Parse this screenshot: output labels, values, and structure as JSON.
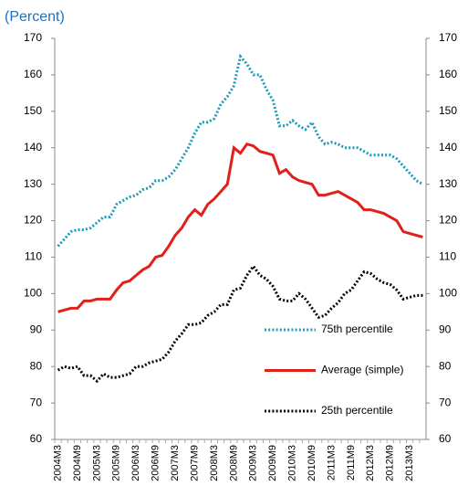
{
  "chart_data": {
    "type": "line",
    "subtitle": "(Percent)",
    "categories": [
      "2004M3",
      null,
      null,
      "2004M9",
      null,
      null,
      "2005M3",
      null,
      null,
      "2005M9",
      null,
      null,
      "2006M3",
      null,
      null,
      "2006M9",
      null,
      null,
      "2007M3",
      null,
      null,
      "2007M9",
      null,
      null,
      "2008M3",
      null,
      null,
      "2008M9",
      null,
      null,
      "2009M3",
      null,
      null,
      "2009M9",
      null,
      null,
      "2010M3",
      null,
      null,
      "2010M9",
      null,
      null,
      "2011M3",
      null,
      null,
      "2011M9",
      null,
      null,
      "2012M3",
      null,
      null,
      "2012M9",
      null,
      null,
      "2013M3",
      null,
      null
    ],
    "series": [
      {
        "name": "75th percentile",
        "color": "#1f9bb5",
        "style": "dotted",
        "values": [
          113,
          115,
          117,
          117.5,
          117.5,
          118,
          119.5,
          121,
          121,
          124.5,
          125.5,
          126.5,
          127,
          128.5,
          129,
          131,
          131,
          132,
          134,
          137,
          140,
          144,
          147,
          147,
          148,
          152,
          154,
          157,
          165,
          163,
          160,
          160,
          156,
          153,
          146,
          146,
          147.5,
          146,
          145,
          147,
          143,
          141,
          141.5,
          141,
          140,
          140,
          140,
          139,
          138,
          138,
          138,
          138,
          137,
          135,
          133,
          131,
          130
        ]
      },
      {
        "name": "Average (simple)",
        "color": "#e0201b",
        "style": "solid",
        "values": [
          95,
          95.5,
          96,
          96,
          98,
          98,
          98.5,
          98.5,
          98.5,
          101,
          103,
          103.5,
          105,
          106.5,
          107.5,
          110,
          110.5,
          113,
          116,
          118,
          121,
          123,
          121.5,
          124.5,
          126,
          128,
          130,
          140,
          138.5,
          141,
          140.5,
          139,
          138.5,
          138,
          133,
          134,
          132,
          131,
          130.5,
          130,
          127,
          127,
          127.5,
          128,
          127,
          126,
          125,
          123,
          123,
          122.5,
          122,
          121,
          120,
          117,
          116.5,
          116,
          115.5
        ]
      },
      {
        "name": "25th percentile",
        "color": "#000000",
        "style": "dotted",
        "values": [
          79,
          80,
          79.5,
          80,
          77.5,
          77.5,
          76,
          78,
          77,
          77,
          77.5,
          78,
          80,
          80,
          81,
          81.5,
          82,
          84,
          87,
          89,
          91.5,
          91.5,
          92,
          94,
          95,
          97,
          97,
          101,
          101.5,
          105,
          107.5,
          105,
          104,
          102,
          98.5,
          98,
          98,
          100,
          98.5,
          96,
          93.5,
          94,
          96,
          97.5,
          100,
          101,
          103.5,
          106,
          105.5,
          104,
          103,
          102.5,
          101,
          98.5,
          99,
          99.5,
          99.5
        ]
      }
    ],
    "ylim": [
      60,
      170
    ],
    "yticks": [
      60,
      70,
      80,
      90,
      100,
      110,
      120,
      130,
      140,
      150,
      160,
      170
    ],
    "y2lim": [
      60,
      170
    ],
    "y2ticks": [
      60,
      70,
      80,
      90,
      100,
      110,
      120,
      130,
      140,
      150,
      160,
      170
    ],
    "grid": false,
    "legend": "lower right"
  }
}
